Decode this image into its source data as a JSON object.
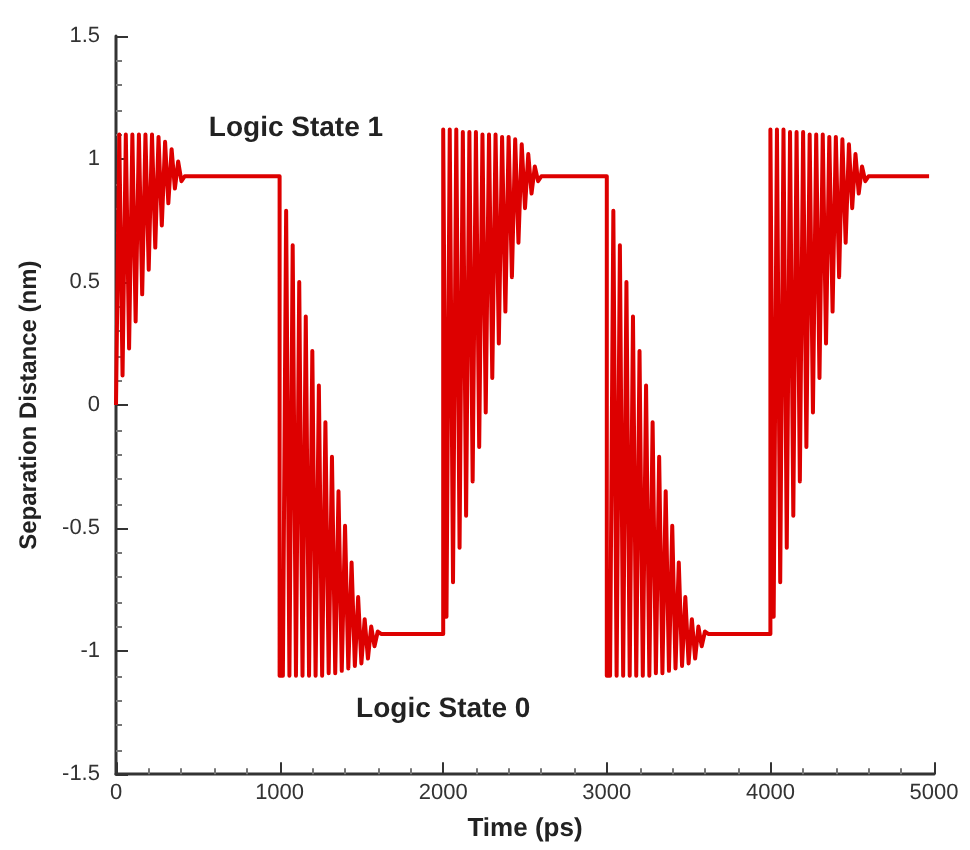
{
  "chart_data": {
    "type": "line",
    "xlabel": "Time (ps)",
    "ylabel": "Separation Distance (nm)",
    "xlim": [
      0,
      5000
    ],
    "xticks": [
      0,
      1000,
      2000,
      3000,
      4000,
      5000
    ],
    "ylim": [
      -1.5,
      1.5
    ],
    "yticks": [
      -1.5,
      -1,
      -0.5,
      0,
      0.5,
      1,
      1.5
    ],
    "marker": "none",
    "line_style": "solid",
    "annotations": [
      "Logic State 1",
      "Logic State 0"
    ],
    "series": [
      {
        "color": "#dd0000",
        "x": [
          0,
          20,
          40,
          60,
          80,
          100,
          120,
          140,
          160,
          180,
          200,
          220,
          240,
          260,
          280,
          300,
          320,
          340,
          360,
          380,
          400,
          420,
          1000,
          1000,
          1020,
          1040,
          1060,
          1080,
          1100,
          1120,
          1140,
          1160,
          1180,
          1200,
          1220,
          1240,
          1260,
          1280,
          1300,
          1320,
          1340,
          1360,
          1380,
          1400,
          1420,
          1440,
          1460,
          1480,
          1500,
          1520,
          1540,
          1560,
          1580,
          1600,
          1620,
          2000,
          2000,
          2020,
          2040,
          2060,
          2080,
          2100,
          2120,
          2140,
          2160,
          2180,
          2200,
          2220,
          2240,
          2260,
          2280,
          2300,
          2320,
          2340,
          2360,
          2380,
          2400,
          2420,
          2440,
          2460,
          2480,
          2500,
          2520,
          2540,
          2560,
          2580,
          2600,
          3000,
          3000,
          3020,
          3040,
          3060,
          3080,
          3100,
          3120,
          3140,
          3160,
          3180,
          3200,
          3220,
          3240,
          3260,
          3280,
          3300,
          3320,
          3340,
          3360,
          3380,
          3400,
          3420,
          3440,
          3460,
          3480,
          3500,
          3520,
          3540,
          3560,
          3580,
          3600,
          3620,
          4000,
          4000,
          4020,
          4040,
          4060,
          4080,
          4100,
          4120,
          4140,
          4160,
          4180,
          4200,
          4220,
          4240,
          4260,
          4280,
          4300,
          4320,
          4340,
          4360,
          4380,
          4400,
          4420,
          4440,
          4460,
          4480,
          4500,
          4520,
          4540,
          4560,
          4580,
          4600,
          4970
        ],
        "values": [
          0,
          1.1,
          0.12,
          1.1,
          0.23,
          1.1,
          0.34,
          1.1,
          0.45,
          1.1,
          0.55,
          1.1,
          0.64,
          1.09,
          0.73,
          1.07,
          0.82,
          1.04,
          0.88,
          0.99,
          0.91,
          0.93,
          0.93,
          -1.1,
          -1.1,
          0.79,
          -1.1,
          0.65,
          -1.1,
          0.5,
          -1.1,
          0.36,
          -1.1,
          0.22,
          -1.1,
          0.08,
          -1.1,
          -0.07,
          -1.09,
          -0.21,
          -1.09,
          -0.35,
          -1.08,
          -0.49,
          -1.07,
          -0.64,
          -1.06,
          -0.78,
          -1.05,
          -0.87,
          -1.03,
          -0.9,
          -0.98,
          -0.92,
          -0.93,
          -0.93,
          1.12,
          -0.86,
          1.12,
          -0.72,
          1.12,
          -0.58,
          1.11,
          -0.45,
          1.11,
          -0.31,
          1.11,
          -0.17,
          1.1,
          -0.03,
          1.1,
          0.11,
          1.1,
          0.25,
          1.09,
          0.38,
          1.09,
          0.52,
          1.08,
          0.66,
          1.06,
          0.8,
          1.02,
          0.86,
          0.97,
          0.91,
          0.93,
          0.93,
          -1.1,
          -1.1,
          0.79,
          -1.1,
          0.65,
          -1.1,
          0.5,
          -1.1,
          0.36,
          -1.1,
          0.22,
          -1.1,
          0.08,
          -1.1,
          -0.07,
          -1.09,
          -0.21,
          -1.09,
          -0.35,
          -1.08,
          -0.49,
          -1.07,
          -0.64,
          -1.06,
          -0.78,
          -1.05,
          -0.87,
          -1.03,
          -0.9,
          -0.98,
          -0.92,
          -0.93,
          -0.93,
          1.12,
          -0.86,
          1.12,
          -0.72,
          1.12,
          -0.58,
          1.11,
          -0.45,
          1.11,
          -0.31,
          1.11,
          -0.17,
          1.1,
          -0.03,
          1.1,
          0.11,
          1.1,
          0.25,
          1.09,
          0.38,
          1.09,
          0.52,
          1.08,
          0.66,
          1.06,
          0.8,
          1.02,
          0.86,
          0.97,
          0.91,
          0.93,
          0.93
        ]
      }
    ]
  }
}
